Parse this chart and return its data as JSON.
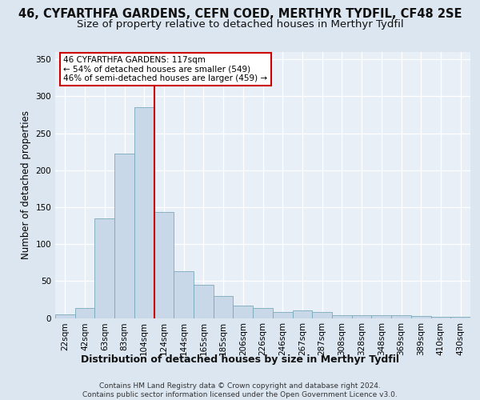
{
  "title": "46, CYFARTHFA GARDENS, CEFN COED, MERTHYR TYDFIL, CF48 2SE",
  "subtitle": "Size of property relative to detached houses in Merthyr Tydfil",
  "xlabel": "Distribution of detached houses by size in Merthyr Tydfil",
  "ylabel": "Number of detached properties",
  "categories": [
    "22sqm",
    "42sqm",
    "63sqm",
    "83sqm",
    "104sqm",
    "124sqm",
    "144sqm",
    "165sqm",
    "185sqm",
    "206sqm",
    "226sqm",
    "246sqm",
    "267sqm",
    "287sqm",
    "308sqm",
    "328sqm",
    "348sqm",
    "369sqm",
    "389sqm",
    "410sqm",
    "430sqm"
  ],
  "values": [
    5,
    14,
    135,
    222,
    285,
    143,
    63,
    45,
    30,
    17,
    13,
    8,
    10,
    8,
    4,
    4,
    4,
    4,
    3,
    2,
    2
  ],
  "bar_color": "#c8d8e8",
  "bar_edge_color": "#7aaabb",
  "vline_color": "#cc0000",
  "vline_index": 4,
  "annotation_text": "46 CYFARTHFA GARDENS: 117sqm\n← 54% of detached houses are smaller (549)\n46% of semi-detached houses are larger (459) →",
  "annotation_box_color": "#ffffff",
  "annotation_box_edge_color": "#cc0000",
  "bg_color": "#dce6f0",
  "plot_bg_color": "#e8eff7",
  "grid_color": "#ffffff",
  "footnote": "Contains HM Land Registry data © Crown copyright and database right 2024.\nContains public sector information licensed under the Open Government Licence v3.0.",
  "ylim": [
    0,
    360
  ],
  "title_fontsize": 10.5,
  "subtitle_fontsize": 9.5,
  "xlabel_fontsize": 9,
  "ylabel_fontsize": 8.5,
  "tick_fontsize": 7.5,
  "footnote_fontsize": 6.5,
  "ann_fontsize": 7.5
}
